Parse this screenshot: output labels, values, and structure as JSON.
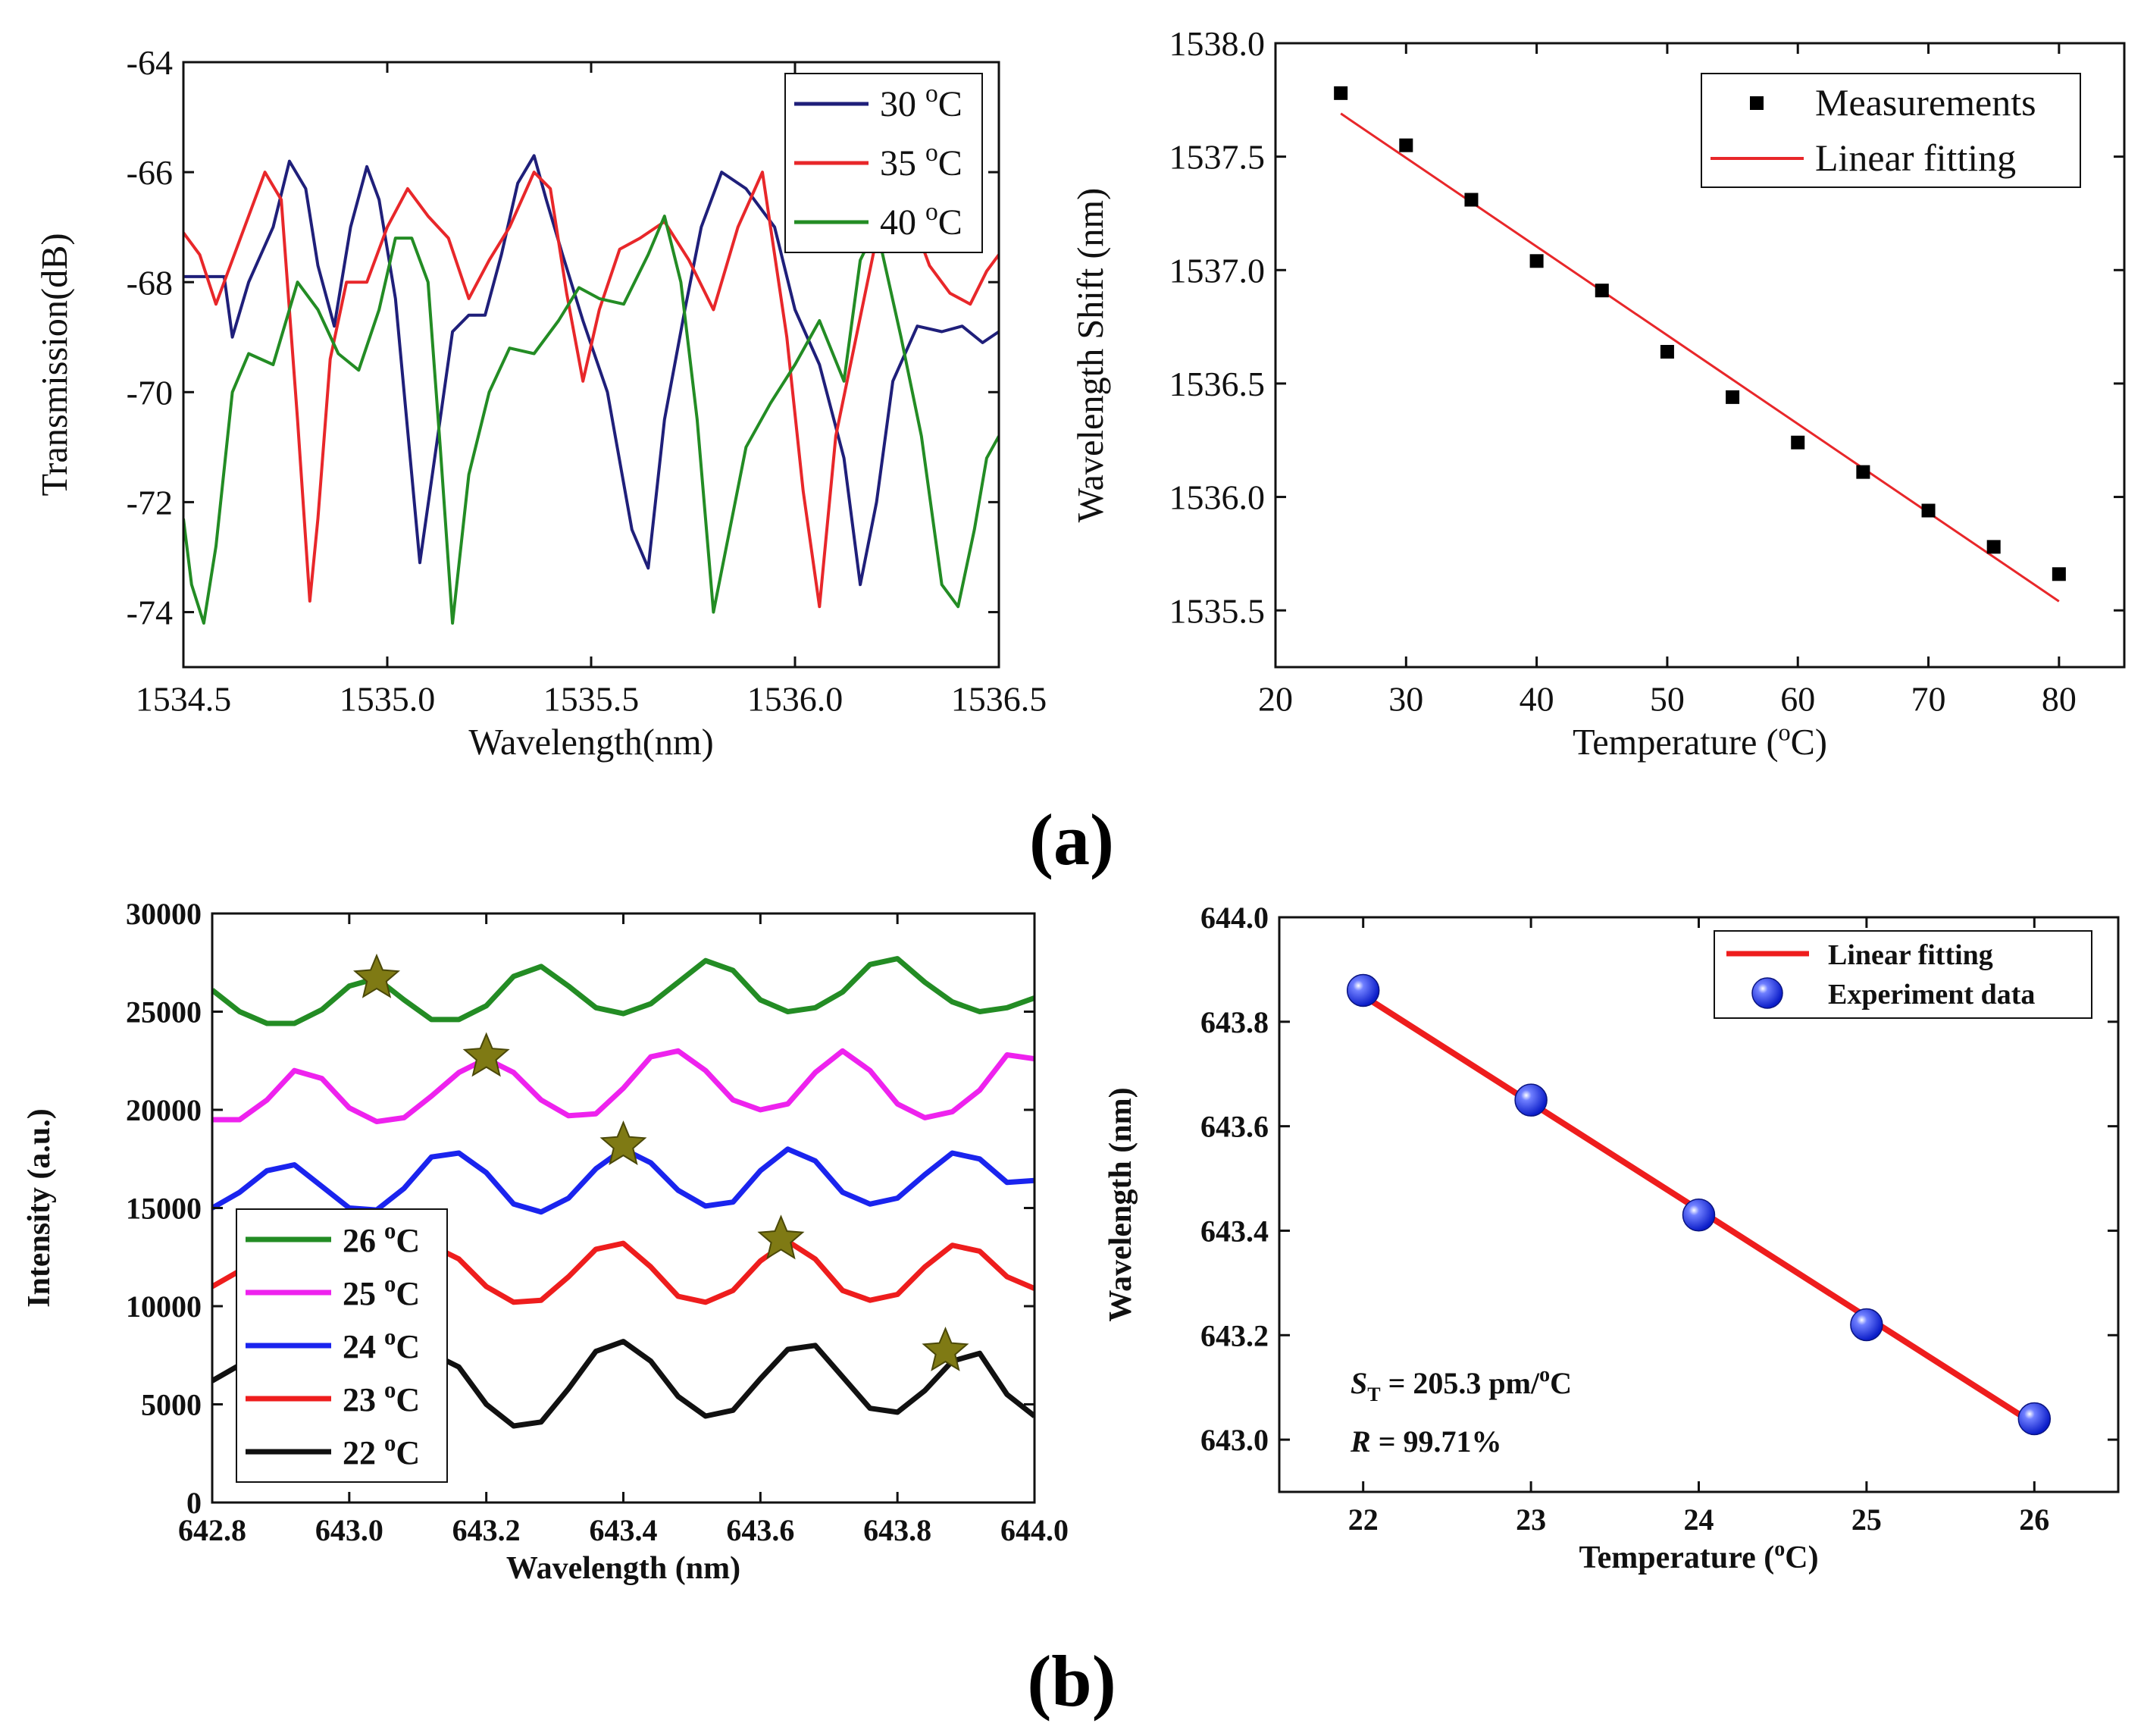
{
  "panel_labels": {
    "a": "(a)",
    "b": "(b)"
  },
  "chart_data": [
    {
      "id": "a1",
      "type": "line",
      "xlabel": "Wavelength(nm)",
      "ylabel": "Transmission(dB)",
      "xlim": [
        1534.5,
        1536.5
      ],
      "ylim": [
        -75,
        -64
      ],
      "xticks": [
        1534.5,
        1535.0,
        1535.5,
        1536.0,
        1536.5
      ],
      "xtick_labels": [
        "1534.5",
        "1535.0",
        "1535.5",
        "1536.0",
        "1536.5"
      ],
      "yticks": [
        -74,
        -72,
        -70,
        -68,
        -66,
        -64
      ],
      "ytick_labels": [
        "-74",
        "-72",
        "-70",
        "-68",
        "-66",
        "-64"
      ],
      "legend_position": "top-right",
      "series": [
        {
          "name": "30",
          "unit": "oC",
          "color": "#1f1f7a",
          "x": [
            1534.5,
            1534.6,
            1534.62,
            1534.66,
            1534.72,
            1534.76,
            1534.8,
            1534.83,
            1534.87,
            1534.91,
            1534.95,
            1534.98,
            1535.02,
            1535.06,
            1535.08,
            1535.12,
            1535.16,
            1535.2,
            1535.24,
            1535.28,
            1535.32,
            1535.36,
            1535.39,
            1535.43,
            1535.48,
            1535.54,
            1535.6,
            1535.64,
            1535.68,
            1535.73,
            1535.77,
            1535.82,
            1535.88,
            1535.95,
            1536.0,
            1536.06,
            1536.12,
            1536.16,
            1536.2,
            1536.24,
            1536.3,
            1536.36,
            1536.41,
            1536.46,
            1536.5
          ],
          "y": [
            -67.9,
            -67.9,
            -69.0,
            -68.0,
            -67.0,
            -65.8,
            -66.3,
            -67.7,
            -68.8,
            -67.0,
            -65.9,
            -66.5,
            -68.3,
            -71.5,
            -73.1,
            -71.0,
            -68.9,
            -68.6,
            -68.6,
            -67.5,
            -66.2,
            -65.7,
            -66.5,
            -67.5,
            -68.7,
            -70.0,
            -72.5,
            -73.2,
            -70.5,
            -68.5,
            -67.0,
            -66.0,
            -66.3,
            -67.0,
            -68.5,
            -69.5,
            -71.2,
            -73.5,
            -72.0,
            -69.8,
            -68.8,
            -68.9,
            -68.8,
            -69.1,
            -68.9
          ]
        },
        {
          "name": "35",
          "unit": "oC",
          "color": "#e8272a",
          "x": [
            1534.5,
            1534.54,
            1534.58,
            1534.64,
            1534.7,
            1534.74,
            1534.78,
            1534.81,
            1534.83,
            1534.86,
            1534.9,
            1534.95,
            1535.0,
            1535.05,
            1535.1,
            1535.15,
            1535.2,
            1535.25,
            1535.3,
            1535.36,
            1535.4,
            1535.44,
            1535.48,
            1535.52,
            1535.57,
            1535.62,
            1535.68,
            1535.74,
            1535.8,
            1535.86,
            1535.92,
            1535.98,
            1536.02,
            1536.06,
            1536.1,
            1536.15,
            1536.2,
            1536.24,
            1536.28,
            1536.33,
            1536.38,
            1536.43,
            1536.47,
            1536.5
          ],
          "y": [
            -67.1,
            -67.5,
            -68.4,
            -67.2,
            -66.0,
            -66.5,
            -70.5,
            -73.8,
            -72.3,
            -69.4,
            -68.0,
            -68.0,
            -67.0,
            -66.3,
            -66.8,
            -67.2,
            -68.3,
            -67.6,
            -67.0,
            -66.0,
            -66.3,
            -68.2,
            -69.8,
            -68.5,
            -67.4,
            -67.2,
            -66.9,
            -67.6,
            -68.5,
            -67.0,
            -66.0,
            -69.0,
            -71.8,
            -73.9,
            -70.8,
            -69.0,
            -67.2,
            -66.2,
            -66.7,
            -67.7,
            -68.2,
            -68.4,
            -67.8,
            -67.5
          ]
        },
        {
          "name": "40",
          "unit": "oC",
          "color": "#238c24",
          "x": [
            1534.5,
            1534.52,
            1534.55,
            1534.58,
            1534.62,
            1534.66,
            1534.72,
            1534.78,
            1534.83,
            1534.88,
            1534.93,
            1534.98,
            1535.02,
            1535.06,
            1535.1,
            1535.13,
            1535.16,
            1535.2,
            1535.25,
            1535.3,
            1535.36,
            1535.42,
            1535.47,
            1535.52,
            1535.58,
            1535.64,
            1535.68,
            1535.72,
            1535.76,
            1535.8,
            1535.84,
            1535.88,
            1535.94,
            1536.0,
            1536.06,
            1536.12,
            1536.16,
            1536.2,
            1536.26,
            1536.31,
            1536.36,
            1536.4,
            1536.44,
            1536.47,
            1536.5
          ],
          "y": [
            -72.3,
            -73.5,
            -74.2,
            -72.8,
            -70.0,
            -69.3,
            -69.5,
            -68.0,
            -68.5,
            -69.3,
            -69.6,
            -68.5,
            -67.2,
            -67.2,
            -68.0,
            -71.0,
            -74.2,
            -71.5,
            -70.0,
            -69.2,
            -69.3,
            -68.7,
            -68.1,
            -68.3,
            -68.4,
            -67.5,
            -66.8,
            -68.0,
            -70.5,
            -74.0,
            -72.5,
            -71.0,
            -70.2,
            -69.5,
            -68.7,
            -69.8,
            -67.6,
            -67.0,
            -69.0,
            -70.8,
            -73.5,
            -73.9,
            -72.5,
            -71.2,
            -70.8
          ]
        }
      ]
    },
    {
      "id": "a2",
      "type": "scatter",
      "xlabel": "Temperature (",
      "xlabel_sup": "o",
      "xlabel_tail": "C)",
      "ylabel": "Wavelength Shift (nm)",
      "xlim": [
        20,
        85
      ],
      "ylim": [
        1535.25,
        1538.0
      ],
      "xticks": [
        20,
        30,
        40,
        50,
        60,
        70,
        80
      ],
      "xtick_labels": [
        "20",
        "30",
        "40",
        "50",
        "60",
        "70",
        "80"
      ],
      "yticks": [
        1535.5,
        1536.0,
        1536.5,
        1537.0,
        1537.5,
        1538.0
      ],
      "ytick_labels": [
        "1535.5",
        "1536.0",
        "1536.5",
        "1537.0",
        "1537.5",
        "1538.0"
      ],
      "legend_position": "top-right",
      "series": [
        {
          "name": "Measurements",
          "color": "#000000",
          "x": [
            25,
            30,
            35,
            40,
            45,
            50,
            55,
            60,
            65,
            70,
            75,
            80
          ],
          "y": [
            1537.78,
            1537.55,
            1537.31,
            1537.04,
            1536.91,
            1536.64,
            1536.44,
            1536.24,
            1536.11,
            1535.94,
            1535.78,
            1535.66
          ]
        },
        {
          "name": "Linear fitting",
          "color": "#e8272a",
          "x": [
            25,
            80
          ],
          "y": [
            1537.69,
            1535.54
          ]
        }
      ]
    },
    {
      "id": "b1",
      "type": "line",
      "xlabel": "Wavelength (nm)",
      "ylabel": "Intensity (a.u.)",
      "xlim": [
        642.8,
        644.0
      ],
      "ylim": [
        0,
        30000
      ],
      "xticks": [
        642.8,
        643.0,
        643.2,
        643.4,
        643.6,
        643.8,
        644.0
      ],
      "xtick_labels": [
        "642.8",
        "643.0",
        "643.2",
        "643.4",
        "643.6",
        "643.8",
        "644.0"
      ],
      "yticks": [
        0,
        5000,
        10000,
        15000,
        20000,
        25000,
        30000
      ],
      "ytick_labels": [
        "0",
        "5000",
        "10000",
        "15000",
        "20000",
        "25000",
        "30000"
      ],
      "legend_position": "bottom-left",
      "series": [
        {
          "name": "26",
          "unit": "oC",
          "color": "#238c24",
          "x": [
            642.8,
            642.84,
            642.88,
            642.92,
            642.96,
            643.0,
            643.04,
            643.08,
            643.12,
            643.16,
            643.2,
            643.24,
            643.28,
            643.32,
            643.36,
            643.4,
            643.44,
            643.48,
            643.52,
            643.56,
            643.6,
            643.64,
            643.68,
            643.72,
            643.76,
            643.8,
            643.84,
            643.88,
            643.92,
            643.96,
            644.0
          ],
          "y": [
            26100,
            25000,
            24400,
            24400,
            25100,
            26300,
            26700,
            25600,
            24600,
            24600,
            25300,
            26800,
            27300,
            26300,
            25200,
            24900,
            25400,
            26500,
            27600,
            27100,
            25600,
            25000,
            25200,
            26000,
            27400,
            27700,
            26500,
            25500,
            25000,
            25200,
            25700
          ],
          "marker_x": 643.04,
          "marker_y": 26700
        },
        {
          "name": "25",
          "unit": "oC",
          "color": "#ee22ee",
          "x": [
            642.8,
            642.84,
            642.88,
            642.92,
            642.96,
            643.0,
            643.04,
            643.08,
            643.12,
            643.16,
            643.2,
            643.24,
            643.28,
            643.32,
            643.36,
            643.4,
            643.44,
            643.48,
            643.52,
            643.56,
            643.6,
            643.64,
            643.68,
            643.72,
            643.76,
            643.8,
            643.84,
            643.88,
            643.92,
            643.96,
            644.0
          ],
          "y": [
            19500,
            19500,
            20500,
            22000,
            21600,
            20100,
            19400,
            19600,
            20700,
            21900,
            22600,
            21900,
            20500,
            19700,
            19800,
            21100,
            22700,
            23000,
            22000,
            20500,
            20000,
            20300,
            21900,
            23000,
            22000,
            20300,
            19600,
            19900,
            21000,
            22800,
            22600
          ],
          "marker_x": 643.2,
          "marker_y": 22700
        },
        {
          "name": "24",
          "unit": "oC",
          "color": "#1a24ee",
          "x": [
            642.8,
            642.84,
            642.88,
            642.92,
            642.96,
            643.0,
            643.04,
            643.08,
            643.12,
            643.16,
            643.2,
            643.24,
            643.28,
            643.32,
            643.36,
            643.4,
            643.44,
            643.48,
            643.52,
            643.56,
            643.6,
            643.64,
            643.68,
            643.72,
            643.76,
            643.8,
            643.84,
            643.88,
            643.92,
            643.96,
            644.0
          ],
          "y": [
            15000,
            15800,
            16900,
            17200,
            16100,
            15000,
            14900,
            16000,
            17600,
            17800,
            16800,
            15200,
            14800,
            15500,
            17000,
            18000,
            17300,
            15900,
            15100,
            15300,
            16900,
            18000,
            17400,
            15800,
            15200,
            15500,
            16700,
            17800,
            17500,
            16300,
            16400
          ],
          "marker_x": 643.4,
          "marker_y": 18200
        },
        {
          "name": "23",
          "unit": "oC",
          "color": "#ee1d1d",
          "x": [
            642.8,
            642.84,
            642.88,
            642.92,
            642.96,
            643.0,
            643.04,
            643.08,
            643.12,
            643.16,
            643.2,
            643.24,
            643.28,
            643.32,
            643.36,
            643.4,
            643.44,
            643.48,
            643.52,
            643.56,
            643.6,
            643.64,
            643.68,
            643.72,
            643.76,
            643.8,
            643.84,
            643.88,
            643.92,
            643.96,
            644.0
          ],
          "y": [
            11000,
            11800,
            12700,
            12600,
            11500,
            10500,
            10700,
            12000,
            13100,
            12400,
            11000,
            10200,
            10300,
            11500,
            12900,
            13200,
            12000,
            10500,
            10200,
            10800,
            12300,
            13300,
            12400,
            10800,
            10300,
            10600,
            12000,
            13100,
            12800,
            11500,
            10900
          ],
          "marker_x": 643.63,
          "marker_y": 13400
        },
        {
          "name": "22",
          "unit": "oC",
          "color": "#111111",
          "x": [
            642.8,
            642.84,
            642.88,
            642.92,
            642.96,
            643.0,
            643.04,
            643.08,
            643.12,
            643.16,
            643.2,
            643.24,
            643.28,
            643.32,
            643.36,
            643.4,
            643.44,
            643.48,
            643.52,
            643.56,
            643.6,
            643.64,
            643.68,
            643.72,
            643.76,
            643.8,
            643.84,
            643.88,
            643.92,
            643.96,
            644.0
          ],
          "y": [
            6200,
            7000,
            7400,
            7200,
            6300,
            5300,
            5200,
            6200,
            7600,
            6900,
            5000,
            3900,
            4100,
            5800,
            7700,
            8200,
            7200,
            5400,
            4400,
            4700,
            6300,
            7800,
            8000,
            6400,
            4800,
            4600,
            5700,
            7200,
            7600,
            5500,
            4400
          ],
          "marker_x": 643.87,
          "marker_y": 7700
        }
      ],
      "marker_color": "#7f7a14"
    },
    {
      "id": "b2",
      "type": "scatter",
      "xlabel": "Temperature (",
      "xlabel_sup": "o",
      "xlabel_tail": "C)",
      "ylabel": "Wavelength (nm)",
      "xlim": [
        21.5,
        26.5
      ],
      "ylim": [
        642.9,
        644.0
      ],
      "xticks": [
        22,
        23,
        24,
        25,
        26
      ],
      "xtick_labels": [
        "22",
        "23",
        "24",
        "25",
        "26"
      ],
      "yticks": [
        643.0,
        643.2,
        643.4,
        643.6,
        643.8,
        644.0
      ],
      "ytick_labels": [
        "643.0",
        "643.2",
        "643.4",
        "643.6",
        "643.8",
        "644.0"
      ],
      "legend_position": "top-right",
      "series": [
        {
          "name": "Linear fitting",
          "color": "#ee1d1d",
          "x": [
            22,
            26
          ],
          "y": [
            643.85,
            643.03
          ]
        },
        {
          "name": "Experiment data",
          "color": "#1a33ee",
          "x": [
            22,
            23,
            24,
            25,
            26
          ],
          "y": [
            643.86,
            643.65,
            643.43,
            643.22,
            643.04
          ]
        }
      ],
      "annotations": [
        {
          "prefix": "S",
          "sub": "T",
          "text": " = 205.3 pm/",
          "sup": "o",
          "tail": "C"
        },
        {
          "prefix": "R",
          "text": " = 99.71%"
        }
      ]
    }
  ]
}
